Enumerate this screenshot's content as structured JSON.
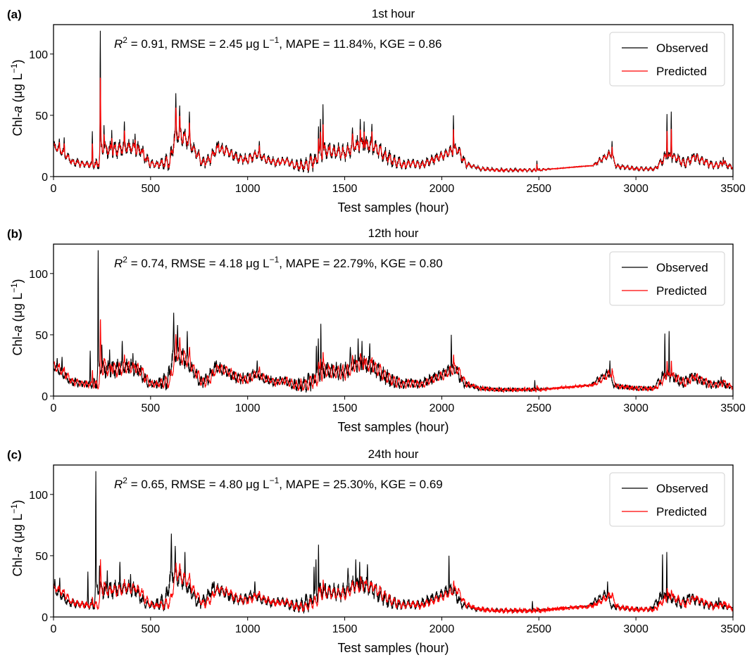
{
  "chart_data": [
    {
      "type": "line",
      "panel_label": "(a)",
      "title": "1st hour",
      "xlabel": "Test samples (hour)",
      "ylabel": "Chl-a (μg L⁻¹)",
      "ylabel_parts": {
        "prefix": "Chl-",
        "italic": "a",
        "suffix": " (μg L",
        "sup": "−1",
        "close": ")"
      },
      "xlim": [
        0,
        3500
      ],
      "ylim": [
        0,
        124
      ],
      "xticks": [
        0,
        500,
        1000,
        1500,
        2000,
        2500,
        3000,
        3500
      ],
      "yticks": [
        0,
        50,
        100
      ],
      "grid": false,
      "legend": {
        "placement": "top-right",
        "entries": [
          {
            "label": "Observed",
            "color": "#000000"
          },
          {
            "label": "Predicted",
            "color": "#ff0000"
          }
        ]
      },
      "metrics": {
        "r2_label": "R",
        "r2_sup": "2",
        "text": " = 0.91, RMSE = 2.45 μg L",
        "unit_sup": "−1",
        "tail": ", MAPE = 11.84%, KGE = 0.86"
      },
      "metrics_values": {
        "R2": 0.91,
        "RMSE": 2.45,
        "MAPE": 11.84,
        "KGE": 0.86
      },
      "shift": 0,
      "pred_gain": 0.82,
      "pred_noise": 0.6,
      "seed": 11,
      "series": [
        {
          "name": "Observed",
          "color": "#000000"
        },
        {
          "name": "Predicted",
          "color": "#ff0000"
        }
      ]
    },
    {
      "type": "line",
      "panel_label": "(b)",
      "title": "12th hour",
      "xlabel": "Test samples (hour)",
      "ylabel": "Chl-a (μg L⁻¹)",
      "ylabel_parts": {
        "prefix": "Chl-",
        "italic": "a",
        "suffix": " (μg L",
        "sup": "−1",
        "close": ")"
      },
      "xlim": [
        0,
        3500
      ],
      "ylim": [
        0,
        124
      ],
      "xticks": [
        0,
        500,
        1000,
        1500,
        2000,
        2500,
        3000,
        3500
      ],
      "yticks": [
        0,
        50,
        100
      ],
      "grid": false,
      "legend": {
        "placement": "top-right",
        "entries": [
          {
            "label": "Observed",
            "color": "#000000"
          },
          {
            "label": "Predicted",
            "color": "#ff0000"
          }
        ]
      },
      "metrics": {
        "r2_label": "R",
        "r2_sup": "2",
        "text": " = 0.74, RMSE = 4.18 μg L",
        "unit_sup": "−1",
        "tail": ", MAPE = 22.79%, KGE = 0.80"
      },
      "metrics_values": {
        "R2": 0.74,
        "RMSE": 4.18,
        "MAPE": 22.79,
        "KGE": 0.8
      },
      "shift": 11,
      "pred_gain": 0.62,
      "pred_noise": 2.2,
      "seed": 23,
      "series": [
        {
          "name": "Observed",
          "color": "#000000"
        },
        {
          "name": "Predicted",
          "color": "#ff0000"
        }
      ]
    },
    {
      "type": "line",
      "panel_label": "(c)",
      "title": "24th hour",
      "xlabel": "Test samples (hour)",
      "ylabel": "Chl-a (μg L⁻¹)",
      "ylabel_parts": {
        "prefix": "Chl-",
        "italic": "a",
        "suffix": " (μg L",
        "sup": "−1",
        "close": ")"
      },
      "xlim": [
        0,
        3500
      ],
      "ylim": [
        0,
        124
      ],
      "xticks": [
        0,
        500,
        1000,
        1500,
        2000,
        2500,
        3000,
        3500
      ],
      "yticks": [
        0,
        50,
        100
      ],
      "grid": false,
      "legend": {
        "placement": "top-right",
        "entries": [
          {
            "label": "Observed",
            "color": "#000000"
          },
          {
            "label": "Predicted",
            "color": "#ff0000"
          }
        ]
      },
      "metrics": {
        "r2_label": "R",
        "r2_sup": "2",
        "text": " = 0.65, RMSE = 4.80 μg L",
        "unit_sup": "−1",
        "tail": ", MAPE = 25.30%, KGE = 0.69"
      },
      "metrics_values": {
        "R2": 0.65,
        "RMSE": 4.8,
        "MAPE": 25.3,
        "KGE": 0.69
      },
      "shift": 23,
      "pred_gain": 0.45,
      "pred_noise": 3.2,
      "seed": 37,
      "series": [
        {
          "name": "Observed",
          "color": "#000000"
        },
        {
          "name": "Predicted",
          "color": "#ff0000"
        }
      ]
    }
  ],
  "observed_profile": {
    "description": "Approximate observed Chl-a baseline envelope (sample index, μg/L) and sharp spikes read from panel (a)",
    "baseline": [
      [
        0,
        24
      ],
      [
        40,
        20
      ],
      [
        60,
        17
      ],
      [
        100,
        11
      ],
      [
        150,
        10
      ],
      [
        200,
        9
      ],
      [
        230,
        9
      ],
      [
        250,
        22
      ],
      [
        300,
        20
      ],
      [
        350,
        22
      ],
      [
        400,
        23
      ],
      [
        450,
        20
      ],
      [
        480,
        12
      ],
      [
        520,
        9
      ],
      [
        600,
        11
      ],
      [
        630,
        35
      ],
      [
        680,
        30
      ],
      [
        720,
        22
      ],
      [
        770,
        10
      ],
      [
        800,
        12
      ],
      [
        840,
        22
      ],
      [
        900,
        20
      ],
      [
        950,
        14
      ],
      [
        1000,
        13
      ],
      [
        1050,
        18
      ],
      [
        1100,
        13
      ],
      [
        1150,
        11
      ],
      [
        1200,
        12
      ],
      [
        1250,
        8
      ],
      [
        1300,
        8
      ],
      [
        1350,
        12
      ],
      [
        1400,
        20
      ],
      [
        1450,
        19
      ],
      [
        1500,
        18
      ],
      [
        1550,
        24
      ],
      [
        1600,
        25
      ],
      [
        1650,
        23
      ],
      [
        1700,
        17
      ],
      [
        1750,
        12
      ],
      [
        1800,
        9
      ],
      [
        1850,
        10
      ],
      [
        1900,
        9
      ],
      [
        1950,
        13
      ],
      [
        2000,
        16
      ],
      [
        2050,
        20
      ],
      [
        2080,
        22
      ],
      [
        2120,
        10
      ],
      [
        2200,
        6
      ],
      [
        2300,
        5
      ],
      [
        2400,
        5
      ],
      [
        2500,
        5
      ],
      [
        2550,
        6
      ],
      [
        2700,
        8
      ],
      [
        2780,
        9
      ],
      [
        2820,
        13
      ],
      [
        2870,
        18
      ],
      [
        2900,
        8
      ],
      [
        3000,
        6
      ],
      [
        3100,
        6
      ],
      [
        3150,
        15
      ],
      [
        3200,
        15
      ],
      [
        3250,
        10
      ],
      [
        3300,
        15
      ],
      [
        3350,
        12
      ],
      [
        3400,
        8
      ],
      [
        3450,
        10
      ],
      [
        3500,
        7
      ]
    ],
    "amplitude": [
      [
        0,
        5
      ],
      [
        200,
        3
      ],
      [
        250,
        9
      ],
      [
        480,
        7
      ],
      [
        520,
        3
      ],
      [
        620,
        10
      ],
      [
        760,
        6
      ],
      [
        840,
        6
      ],
      [
        1200,
        4
      ],
      [
        1350,
        9
      ],
      [
        1700,
        8
      ],
      [
        1850,
        4
      ],
      [
        2100,
        6
      ],
      [
        2150,
        2
      ],
      [
        2500,
        1.5
      ],
      [
        2550,
        0.6
      ],
      [
        2780,
        1
      ],
      [
        2820,
        4
      ],
      [
        2950,
        2
      ],
      [
        3100,
        2
      ],
      [
        3150,
        6
      ],
      [
        3500,
        3
      ]
    ],
    "spikes": [
      [
        30,
        31
      ],
      [
        55,
        32
      ],
      [
        200,
        37
      ],
      [
        241,
        119
      ],
      [
        260,
        42
      ],
      [
        300,
        38
      ],
      [
        365,
        45
      ],
      [
        420,
        35
      ],
      [
        630,
        68
      ],
      [
        650,
        58
      ],
      [
        700,
        53
      ],
      [
        850,
        29
      ],
      [
        1060,
        29
      ],
      [
        1365,
        41
      ],
      [
        1375,
        47
      ],
      [
        1388,
        59
      ],
      [
        1540,
        40
      ],
      [
        1580,
        47
      ],
      [
        1600,
        45
      ],
      [
        1640,
        43
      ],
      [
        2060,
        50
      ],
      [
        2490,
        13
      ],
      [
        2860,
        22
      ],
      [
        2877,
        29
      ],
      [
        3160,
        51
      ],
      [
        3182,
        53
      ],
      [
        3300,
        19
      ],
      [
        3450,
        16
      ]
    ]
  }
}
